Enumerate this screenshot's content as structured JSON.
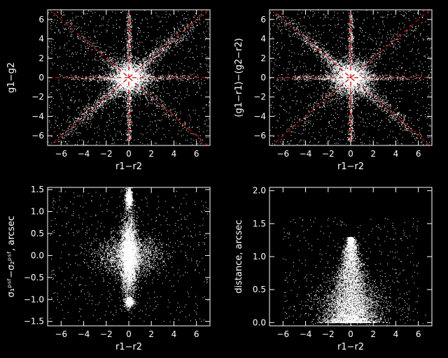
{
  "colors": {
    "background": "#000000",
    "foreground": "#ffffff",
    "guide": "#cc0000"
  },
  "chart_data": [
    {
      "id": "top-left",
      "type": "scatter",
      "xlabel": "r1−r2",
      "ylabel": "g1−g2",
      "xlim": [
        -7.2,
        7.2
      ],
      "ylim": [
        -7.0,
        7.0
      ],
      "xticks": [
        -6,
        -4,
        -2,
        0,
        2,
        4,
        6
      ],
      "xtick_labels": [
        "−6",
        "−4",
        "−2",
        "0",
        "2",
        "4",
        "6"
      ],
      "yticks": [
        -6,
        -4,
        -2,
        0,
        2,
        4,
        6
      ],
      "ytick_labels": [
        "−6",
        "−4",
        "−2",
        "0",
        "2",
        "4",
        "6"
      ],
      "guide_lines": [
        {
          "x1": -7.2,
          "y1": -7.2,
          "x2": 7.2,
          "y2": 7.2
        },
        {
          "x1": -7.2,
          "y1": 7.2,
          "x2": 7.2,
          "y2": -7.2
        },
        {
          "x1": -7.2,
          "y1": 0,
          "x2": 7.2,
          "y2": 0
        },
        {
          "x1": 0,
          "y1": -7.2,
          "x2": 0,
          "y2": 7.2
        }
      ],
      "point_clouds": [
        {
          "shape": "gauss",
          "n": 2600,
          "cx": 0,
          "cy": 0,
          "sx": 0.9,
          "sy": 0.9
        },
        {
          "shape": "gauss",
          "n": 1400,
          "cx": 0,
          "cy": 0,
          "sx": 0.35,
          "sy": 0.35
        },
        {
          "shape": "diagonal",
          "n": 1500,
          "slope": 1,
          "rmax": 7,
          "spread": 0.45
        },
        {
          "shape": "diagonal",
          "n": 500,
          "slope": -1,
          "rmax": 7,
          "spread": 0.5
        },
        {
          "shape": "vertical",
          "n": 700,
          "x0": 0,
          "ymax": 6.5,
          "spread": 0.12
        },
        {
          "shape": "horizontal",
          "n": 700,
          "y0": 0,
          "xmax": 7,
          "spread": 0.15
        },
        {
          "shape": "uniform",
          "n": 1100
        }
      ]
    },
    {
      "id": "top-right",
      "type": "scatter",
      "xlabel": "r1−r2",
      "ylabel": "(g1−r1)−(g2−r2)",
      "xlim": [
        -7.2,
        7.2
      ],
      "ylim": [
        -7.0,
        7.0
      ],
      "xticks": [
        -6,
        -4,
        -2,
        0,
        2,
        4,
        6
      ],
      "xtick_labels": [
        "−6",
        "−4",
        "−2",
        "0",
        "2",
        "4",
        "6"
      ],
      "yticks": [
        -6,
        -4,
        -2,
        0,
        2,
        4,
        6
      ],
      "ytick_labels": [
        "−6",
        "−4",
        "−2",
        "0",
        "2",
        "4",
        "6"
      ],
      "guide_lines": [
        {
          "x1": -7.2,
          "y1": -7.2,
          "x2": 7.2,
          "y2": 7.2
        },
        {
          "x1": -7.2,
          "y1": 7.2,
          "x2": 7.2,
          "y2": -7.2
        },
        {
          "x1": -7.2,
          "y1": 0,
          "x2": 7.2,
          "y2": 0
        },
        {
          "x1": 0,
          "y1": -7.2,
          "x2": 0,
          "y2": 7.2
        }
      ],
      "point_clouds": [
        {
          "shape": "gauss",
          "n": 2600,
          "cx": 0,
          "cy": 0,
          "sx": 0.9,
          "sy": 0.9
        },
        {
          "shape": "gauss",
          "n": 1400,
          "cx": 0,
          "cy": 0,
          "sx": 0.35,
          "sy": 0.35
        },
        {
          "shape": "diagonal",
          "n": 1400,
          "slope": -1,
          "rmax": 7,
          "spread": 0.45
        },
        {
          "shape": "diagonal",
          "n": 400,
          "slope": 1,
          "rmax": 7,
          "spread": 0.5
        },
        {
          "shape": "vertical",
          "n": 700,
          "x0": 0,
          "ymax": 6.5,
          "spread": 0.12
        },
        {
          "shape": "horizontal",
          "n": 700,
          "y0": 0,
          "xmax": 7,
          "spread": 0.15
        },
        {
          "shape": "uniform",
          "n": 1100
        }
      ]
    },
    {
      "id": "bottom-left",
      "type": "scatter",
      "xlabel": "r1−r2",
      "ylabel": "σ₁ᵖˢᶠ−σ₂ᵖˢᶠ, arcsec",
      "xlim": [
        -7.2,
        7.2
      ],
      "ylim": [
        -1.6,
        1.55
      ],
      "xticks": [
        -6,
        -4,
        -2,
        0,
        2,
        4,
        6
      ],
      "xtick_labels": [
        "−6",
        "−4",
        "−2",
        "0",
        "2",
        "4",
        "6"
      ],
      "yticks": [
        -1.5,
        -1.0,
        -0.5,
        0.0,
        0.5,
        1.0,
        1.5
      ],
      "ytick_labels": [
        "−1.5",
        "−1.0",
        "−0.5",
        "0.0",
        "0.5",
        "1.0",
        "1.5"
      ],
      "guide_lines": [],
      "point_clouds": [
        {
          "shape": "gauss",
          "n": 4500,
          "cx": 0,
          "cy": 0,
          "sx": 0.35,
          "sy": 0.42
        },
        {
          "shape": "gauss",
          "n": 2200,
          "cx": 0,
          "cy": 0,
          "sx": 1.4,
          "sy": 0.22
        },
        {
          "shape": "gauss",
          "n": 700,
          "cx": 0,
          "cy": 1.3,
          "sx": 0.15,
          "sy": 0.12
        },
        {
          "shape": "gauss",
          "n": 400,
          "cx": 0,
          "cy": -1.05,
          "sx": 0.2,
          "sy": 0.06
        },
        {
          "shape": "uniform",
          "n": 600,
          "xr": [
            -7,
            7
          ],
          "yr": [
            -1.5,
            1.5
          ]
        }
      ]
    },
    {
      "id": "bottom-right",
      "type": "scatter",
      "xlabel": "r1−r2",
      "ylabel": "distance, arcsec",
      "xlim": [
        -7.2,
        7.2
      ],
      "ylim": [
        -0.05,
        2.05
      ],
      "xticks": [
        -6,
        -4,
        -2,
        0,
        2,
        4,
        6
      ],
      "xtick_labels": [
        "−6",
        "−4",
        "−2",
        "0",
        "2",
        "4",
        "6"
      ],
      "yticks": [
        0.0,
        0.5,
        1.0,
        1.5,
        2.0
      ],
      "ytick_labels": [
        "0.0",
        "0.5",
        "1.0",
        "1.5",
        "2.0"
      ],
      "guide_lines": [],
      "point_clouds": [
        {
          "shape": "cone",
          "n": 6500,
          "apex": 1.3,
          "width": 2.6
        },
        {
          "shape": "gauss",
          "n": 900,
          "cx": 0,
          "cy": 0.3,
          "sx": 2.0,
          "sy": 0.18
        },
        {
          "shape": "uniform",
          "n": 400,
          "xr": [
            -6,
            6
          ],
          "yr": [
            0,
            1.6
          ]
        }
      ]
    }
  ]
}
